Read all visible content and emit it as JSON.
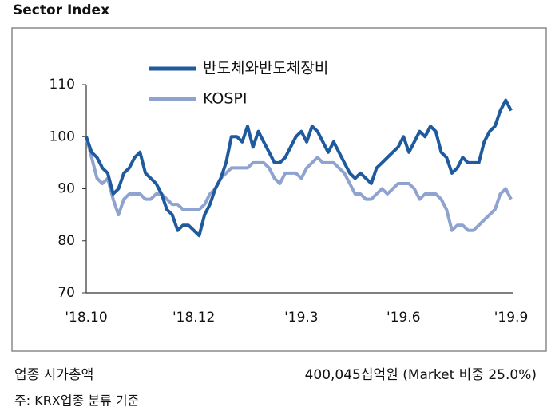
{
  "chart_data": {
    "type": "line",
    "title": "Sector Index",
    "categories": [
      "'18.10",
      null,
      null,
      null,
      null,
      null,
      null,
      null,
      null,
      null,
      null,
      null,
      null,
      null,
      null,
      null,
      null,
      null,
      null,
      null,
      "'18.12",
      null,
      null,
      null,
      null,
      null,
      null,
      null,
      null,
      null,
      null,
      null,
      null,
      null,
      null,
      null,
      null,
      null,
      null,
      null,
      "'19.3",
      null,
      null,
      null,
      null,
      null,
      null,
      null,
      null,
      null,
      null,
      null,
      null,
      null,
      null,
      null,
      null,
      null,
      null,
      "'19.6",
      null,
      null,
      null,
      null,
      null,
      null,
      null,
      null,
      null,
      null,
      null,
      null,
      null,
      null,
      null,
      null,
      null,
      null,
      null,
      "'19.9"
    ],
    "series": [
      {
        "name": "반도체와반도체장비",
        "color": "#1f5a9e",
        "values": [
          100,
          97,
          96,
          94,
          93,
          89,
          90,
          93,
          94,
          96,
          97,
          93,
          92,
          91,
          89,
          86,
          85,
          82,
          83,
          83,
          82,
          81,
          85,
          87,
          90,
          92,
          95,
          100,
          100,
          99,
          102,
          98,
          101,
          99,
          97,
          95,
          95,
          96,
          98,
          100,
          101,
          99,
          102,
          101,
          99,
          97,
          99,
          97,
          95,
          93,
          92,
          93,
          92,
          91,
          94,
          95,
          96,
          97,
          98,
          100,
          97,
          99,
          101,
          100,
          102,
          101,
          97,
          96,
          93,
          94,
          96,
          95,
          95,
          95,
          99,
          101,
          102,
          105,
          107,
          105
        ]
      },
      {
        "name": "KOSPI",
        "color": "#8ea3cf",
        "values": [
          100,
          96,
          92,
          91,
          92,
          88,
          85,
          88,
          89,
          89,
          89,
          88,
          88,
          89,
          89,
          88,
          87,
          87,
          86,
          86,
          86,
          86,
          87,
          89,
          90,
          92,
          93,
          94,
          94,
          94,
          94,
          95,
          95,
          95,
          94,
          92,
          91,
          93,
          93,
          93,
          92,
          94,
          95,
          96,
          95,
          95,
          95,
          94,
          93,
          91,
          89,
          89,
          88,
          88,
          89,
          90,
          89,
          90,
          91,
          91,
          91,
          90,
          88,
          89,
          89,
          89,
          88,
          86,
          82,
          83,
          83,
          82,
          82,
          83,
          84,
          85,
          86,
          89,
          90,
          88
        ]
      }
    ],
    "ylim": [
      70,
      110
    ],
    "yticks": [
      70,
      80,
      90,
      100,
      110
    ],
    "legend": "top",
    "grid": false
  },
  "footer": {
    "label": "업종 시가총액",
    "value": "400,045십억원 (Market 비중 25.0%)",
    "note": "주: KRX업종 분류 기준"
  }
}
